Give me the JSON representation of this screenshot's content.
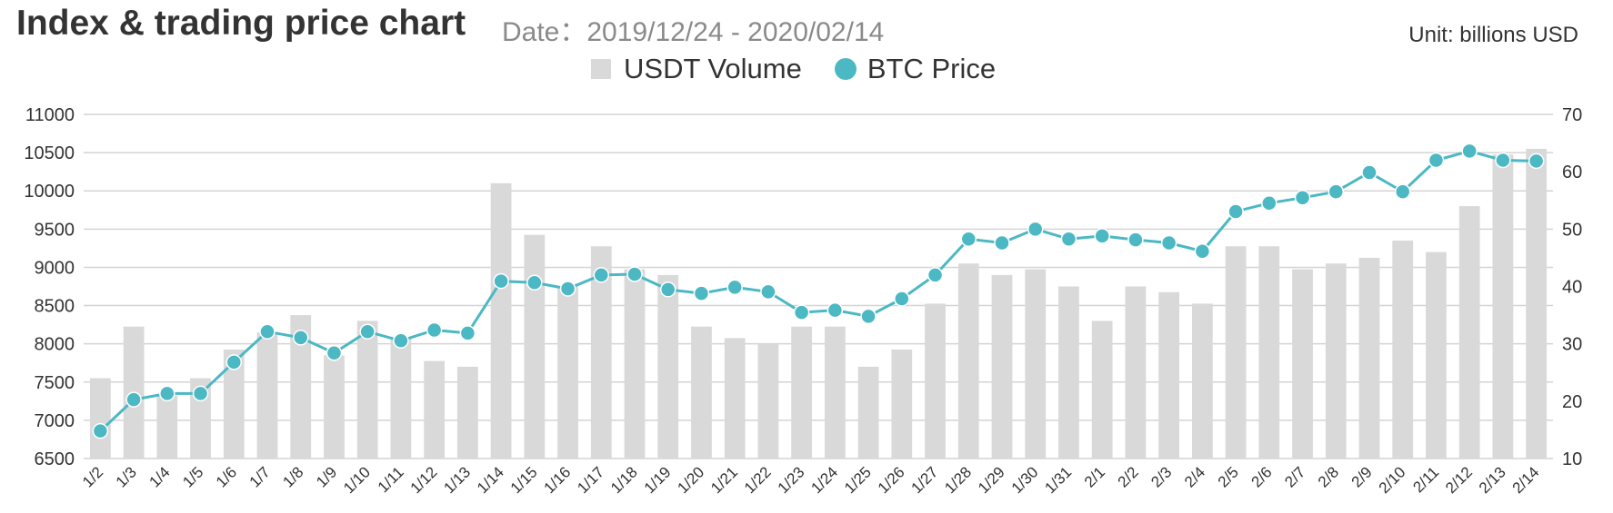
{
  "header": {
    "title": "Index & trading price chart",
    "subtitle": "Date：2019/12/24 - 2020/02/14",
    "unit": "Unit: billions USD"
  },
  "colors": {
    "bar": "#d9d9d9",
    "line": "#4bb8c3",
    "grid": "#d4d4d4",
    "text": "#333333"
  },
  "chart_data": {
    "type": "bar",
    "title": "Index & trading price chart",
    "subtitle": "Date：2019/12/24 - 2020/02/14",
    "unit": "Unit: billions USD",
    "legend": "top-center",
    "grid": true,
    "categories": [
      "1/2",
      "1/3",
      "1/4",
      "1/5",
      "1/6",
      "1/7",
      "1/8",
      "1/9",
      "1/10",
      "1/11",
      "1/12",
      "1/13",
      "1/14",
      "1/15",
      "1/16",
      "1/17",
      "1/18",
      "1/19",
      "1/20",
      "1/21",
      "1/22",
      "1/23",
      "1/24",
      "1/25",
      "1/26",
      "1/27",
      "1/28",
      "1/29",
      "1/30",
      "1/31",
      "2/1",
      "2/2",
      "2/3",
      "2/4",
      "2/5",
      "2/6",
      "2/7",
      "2/8",
      "2/9",
      "2/10",
      "2/11",
      "2/12",
      "2/13",
      "2/14"
    ],
    "y_left": {
      "min": 6500,
      "max": 11000,
      "ticks": [
        6500,
        7000,
        7500,
        8000,
        8500,
        9000,
        9500,
        10000,
        10500,
        11000
      ]
    },
    "y_right": {
      "min": 10,
      "max": 70,
      "ticks": [
        10,
        20,
        30,
        40,
        50,
        60,
        70
      ]
    },
    "series": [
      {
        "name": "USDT Volume",
        "type": "bar",
        "axis": "right",
        "values": [
          24,
          33,
          21,
          24,
          29,
          32,
          35,
          28,
          34,
          31,
          27,
          26,
          58,
          49,
          40,
          47,
          43,
          42,
          33,
          31,
          30,
          33,
          33,
          26,
          29,
          37,
          44,
          42,
          43,
          40,
          34,
          40,
          39,
          37,
          47,
          47,
          43,
          44,
          45,
          48,
          46,
          54,
          63,
          64
        ]
      },
      {
        "name": "BTC Price",
        "type": "line",
        "axis": "left",
        "values": [
          6860,
          7270,
          7350,
          7350,
          7760,
          8160,
          8080,
          7880,
          8160,
          8040,
          8180,
          8140,
          8820,
          8800,
          8720,
          8900,
          8910,
          8710,
          8660,
          8740,
          8680,
          8410,
          8440,
          8360,
          8590,
          8900,
          9370,
          9320,
          9500,
          9370,
          9410,
          9360,
          9320,
          9210,
          9730,
          9840,
          9910,
          9990,
          10240,
          9990,
          10400,
          10520,
          10400,
          10390
        ]
      }
    ]
  }
}
